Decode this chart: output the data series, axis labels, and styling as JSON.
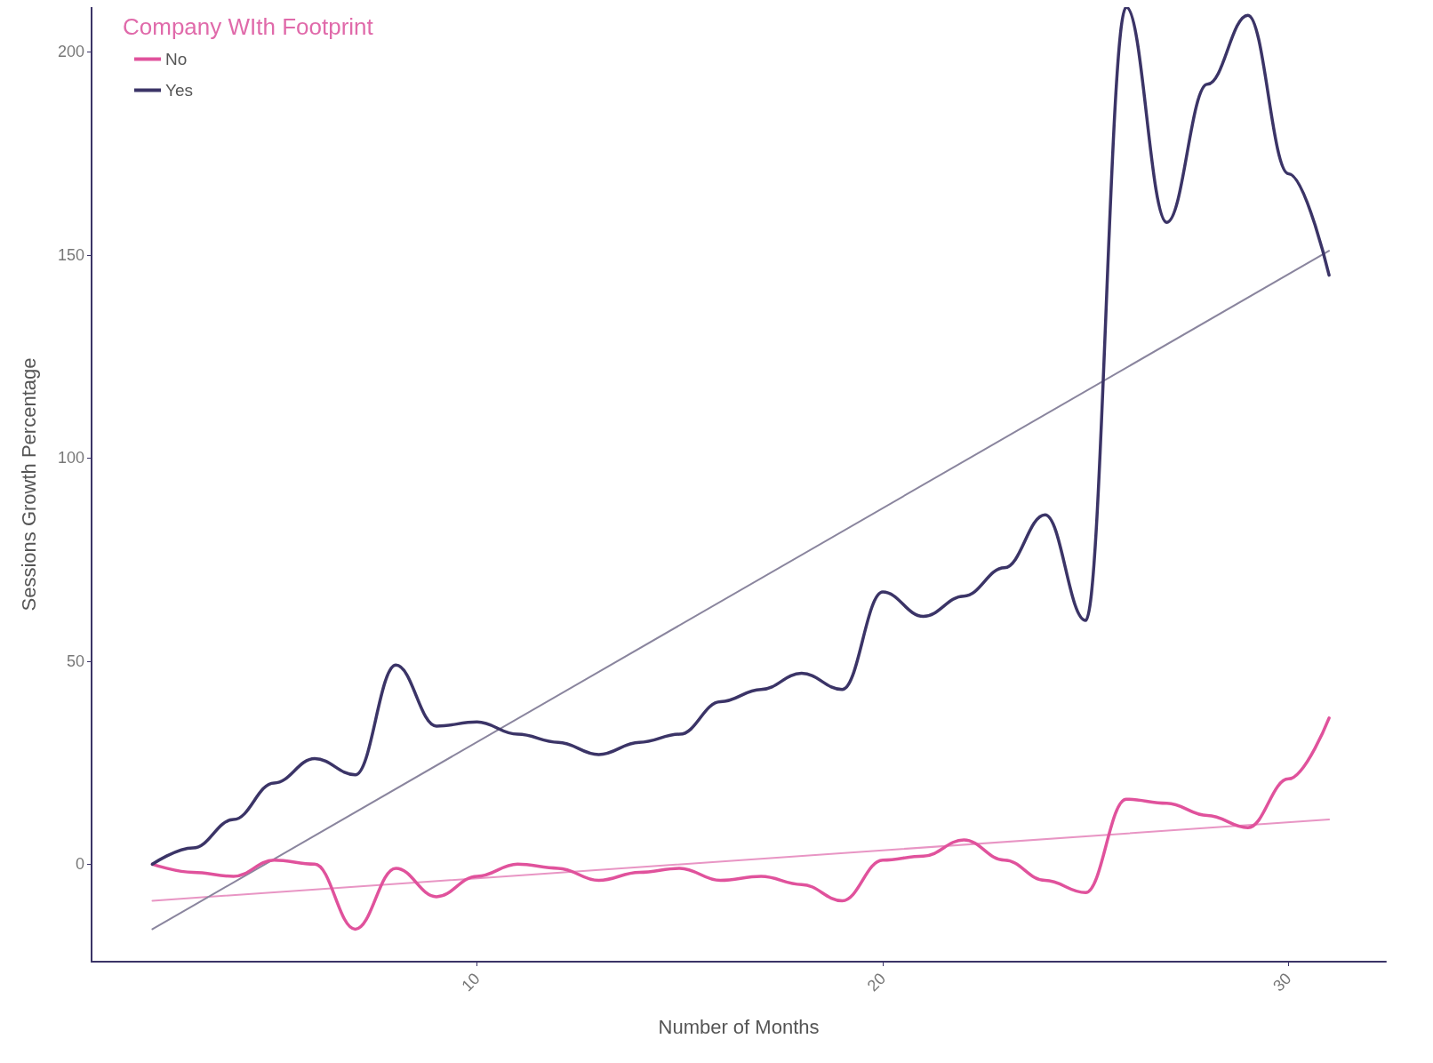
{
  "chart_data": {
    "type": "line",
    "xlabel": "Number of Months",
    "ylabel": "Sessions Growth Percentage",
    "legend_title": "Company WIth Footprint",
    "legend": "top left",
    "grid": false,
    "marker": "none",
    "line_style": "solid",
    "x": [
      2,
      3,
      4,
      5,
      6,
      7,
      8,
      9,
      10,
      11,
      12,
      13,
      14,
      15,
      16,
      17,
      18,
      19,
      20,
      21,
      22,
      23,
      24,
      25,
      26,
      27,
      28,
      29,
      30,
      31
    ],
    "xlim": [
      0.5,
      32.4
    ],
    "xticks": [
      10,
      20,
      30
    ],
    "ylim": [
      -24,
      211
    ],
    "yticks": [
      0,
      50,
      100,
      150,
      200
    ],
    "series": [
      {
        "name": "No",
        "color": "#e0529c",
        "values": [
          0,
          -2,
          -3,
          1,
          0,
          -16,
          -1,
          -8,
          -3,
          0,
          -1,
          -4,
          -2,
          -1,
          -4,
          -3,
          -5,
          -9,
          1,
          2,
          6,
          1,
          -4,
          -7,
          16,
          15,
          12,
          9,
          21,
          36
        ]
      },
      {
        "name": "Yes",
        "color": "#3b3467",
        "values": [
          0,
          4,
          11,
          20,
          26,
          22,
          49,
          34,
          35,
          32,
          30,
          27,
          30,
          32,
          40,
          43,
          47,
          43,
          67,
          61,
          66,
          73,
          86,
          60,
          211,
          158,
          192,
          209,
          170,
          145
        ]
      },
      {
        "color": "#e895c4",
        "values": [
          -9,
          null,
          null,
          null,
          null,
          null,
          null,
          null,
          null,
          null,
          null,
          null,
          null,
          null,
          null,
          null,
          null,
          null,
          null,
          null,
          null,
          null,
          null,
          null,
          null,
          null,
          null,
          null,
          null,
          11
        ]
      },
      {
        "color": "#8a859e",
        "values": [
          -16,
          null,
          null,
          null,
          null,
          null,
          null,
          null,
          null,
          null,
          null,
          null,
          null,
          null,
          null,
          null,
          null,
          null,
          null,
          null,
          null,
          null,
          null,
          null,
          null,
          null,
          null,
          null,
          null,
          151
        ]
      }
    ]
  }
}
